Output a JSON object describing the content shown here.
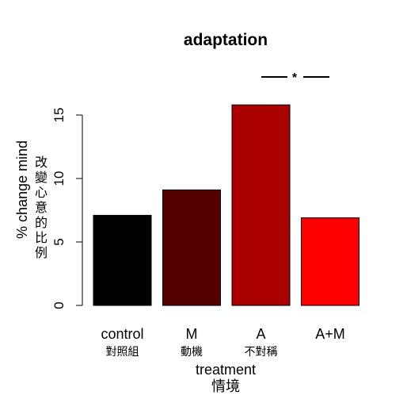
{
  "chart_data": {
    "type": "bar",
    "title": "adaptation",
    "xlabel": "treatment",
    "xlabel_secondary": "情境",
    "ylabel": "% change mind",
    "ylabel_secondary": "改變心意的比例",
    "ylim": [
      0,
      16
    ],
    "yticks": [
      "0",
      "5",
      "10",
      "15"
    ],
    "categories": [
      "control",
      "M",
      "A",
      "A+M"
    ],
    "categories_secondary": [
      "對照組",
      "動機",
      "不對稱",
      ""
    ],
    "values": [
      7.1,
      9.1,
      15.8,
      6.9
    ],
    "colors": [
      "#000000",
      "#550000",
      "#aa0000",
      "#ff0000"
    ],
    "grid": false,
    "annotations": [
      {
        "text": "*",
        "between": [
          "A",
          "A+M"
        ]
      }
    ]
  }
}
